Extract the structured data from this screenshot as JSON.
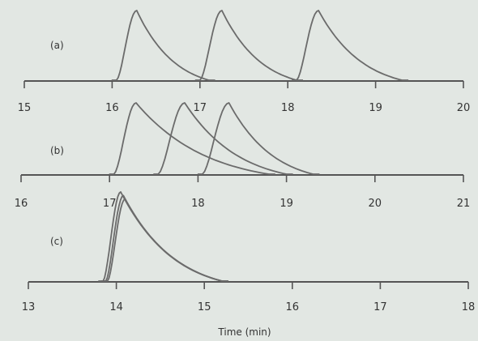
{
  "chart_data": {
    "type": "line",
    "xlabel": "Time (min)",
    "ylabel": "",
    "grid": false,
    "legend": "none",
    "colors": {
      "background": "#e2e7e3",
      "axis": "#555555",
      "trace": "#6b6b6b"
    },
    "panels": [
      {
        "label": "(a)",
        "xlim": [
          15,
          20
        ],
        "xticks": [
          15,
          16,
          17,
          18,
          19,
          20
        ],
        "xtick_labels": [
          "15",
          "16",
          "17",
          "18",
          "19",
          "20"
        ],
        "series": [
          {
            "peak_start": 16.05,
            "peak_max": 16.28,
            "tail_end": 17.1,
            "height": 1.0
          },
          {
            "peak_start": 17.0,
            "peak_max": 17.25,
            "tail_end": 18.1,
            "height": 1.0
          },
          {
            "peak_start": 18.1,
            "peak_max": 18.35,
            "tail_end": 19.3,
            "height": 1.0
          }
        ]
      },
      {
        "label": "(b)",
        "xlim": [
          16,
          21
        ],
        "xticks": [
          16,
          17,
          18,
          19,
          20,
          21
        ],
        "xtick_labels": [
          "16",
          "17",
          "18",
          "19",
          "20",
          "21"
        ],
        "series": [
          {
            "peak_start": 17.05,
            "peak_max": 17.3,
            "tail_end": 18.8,
            "height": 1.0
          },
          {
            "peak_start": 17.55,
            "peak_max": 17.85,
            "tail_end": 19.0,
            "height": 1.0
          },
          {
            "peak_start": 18.05,
            "peak_max": 18.35,
            "tail_end": 19.3,
            "height": 1.0
          }
        ]
      },
      {
        "label": "(c)",
        "xlim": [
          13,
          18
        ],
        "xticks": [
          13,
          14,
          15,
          16,
          17,
          18
        ],
        "xtick_labels": [
          "13",
          "14",
          "15",
          "16",
          "17",
          "18"
        ],
        "series": [
          {
            "peak_start": 13.85,
            "peak_max": 14.05,
            "tail_end": 15.2,
            "height": 1.0
          },
          {
            "peak_start": 13.88,
            "peak_max": 14.08,
            "tail_end": 15.2,
            "height": 0.96
          },
          {
            "peak_start": 13.9,
            "peak_max": 14.1,
            "tail_end": 15.2,
            "height": 0.92
          }
        ]
      }
    ]
  }
}
